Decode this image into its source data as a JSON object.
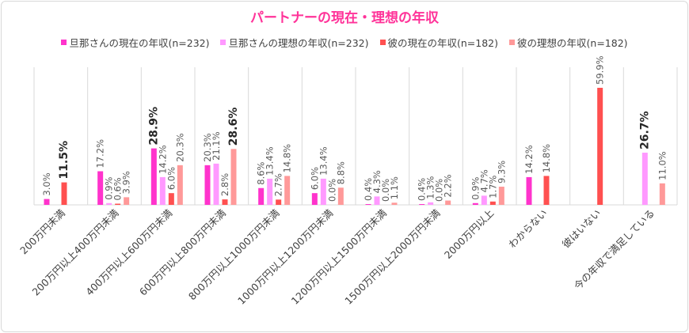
{
  "chart_data": {
    "type": "bar",
    "title": "パートナーの現在・理想の年収",
    "legend_position": "top",
    "ylim": [
      0,
      70
    ],
    "grid": "vertical category separators",
    "categories": [
      "200万円未満",
      "200万円以上400万円未満",
      "400万円以上600万円未満",
      "600万円以上800万円未満",
      "800万円以上1000万円未満",
      "1000万円以上1200万円未満",
      "1200万円以上1500万円未満",
      "1500万円以上2000万円未満",
      "2000万円以上",
      "わからない",
      "彼はいない",
      "今の年収で満足している"
    ],
    "series": [
      {
        "name": "旦那さんの現在の年収(n=232)",
        "color": "#ff33cc",
        "values": [
          3.0,
          17.2,
          28.9,
          20.3,
          8.6,
          6.0,
          0.4,
          0.4,
          0.9,
          14.2,
          null,
          null
        ],
        "bold": [
          false,
          false,
          true,
          false,
          false,
          false,
          false,
          false,
          false,
          false,
          false,
          false
        ]
      },
      {
        "name": "旦那さんの理想の年収(n=232)",
        "color": "#ff99ff",
        "values": [
          null,
          0.9,
          14.2,
          21.1,
          13.4,
          13.4,
          4.3,
          1.3,
          4.7,
          null,
          null,
          26.7
        ],
        "bold": [
          false,
          false,
          false,
          false,
          false,
          false,
          false,
          false,
          false,
          false,
          false,
          true
        ]
      },
      {
        "name": "彼の現在の年収(n=182)",
        "color": "#ff5050",
        "values": [
          11.5,
          0.6,
          6.0,
          2.8,
          2.7,
          0.0,
          0.0,
          0.0,
          1.7,
          14.8,
          59.9,
          null
        ],
        "bold": [
          true,
          false,
          false,
          false,
          false,
          false,
          false,
          false,
          false,
          false,
          false,
          false
        ]
      },
      {
        "name": "彼の理想の年収(n=182)",
        "color": "#ff9999",
        "values": [
          null,
          3.9,
          20.3,
          28.6,
          14.8,
          8.8,
          1.1,
          2.2,
          9.3,
          null,
          null,
          11.0
        ],
        "bold": [
          false,
          false,
          false,
          true,
          false,
          false,
          false,
          false,
          false,
          false,
          false,
          false
        ]
      }
    ]
  }
}
